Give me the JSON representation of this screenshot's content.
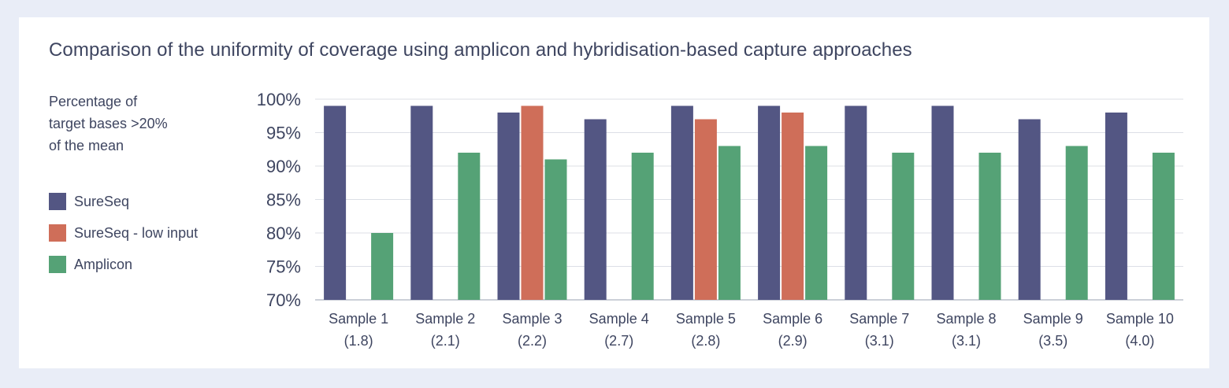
{
  "chart_data": {
    "type": "bar",
    "title": "Comparison of the uniformity of coverage using amplicon and hybridisation-based capture approaches",
    "ylabel_lines": [
      "Percentage of",
      "target bases >20%",
      "of the mean"
    ],
    "categories": [
      "Sample 1",
      "Sample 2",
      "Sample 3",
      "Sample 4",
      "Sample 5",
      "Sample 6",
      "Sample 7",
      "Sample 8",
      "Sample 9",
      "Sample 10"
    ],
    "category_sublabels": [
      "(1.8)",
      "(2.1)",
      "(2.2)",
      "(2.7)",
      "(2.8)",
      "(2.9)",
      "(3.1)",
      "(3.1)",
      "(3.5)",
      "(4.0)"
    ],
    "ylim": [
      70,
      100
    ],
    "yticks": [
      100,
      95,
      90,
      85,
      80,
      75,
      70
    ],
    "ytick_labels": [
      "100%",
      "95%",
      "90%",
      "85%",
      "80%",
      "75%",
      "70%"
    ],
    "grid": true,
    "legend_position": "left",
    "series": [
      {
        "name": "SureSeq",
        "color": "#535683",
        "values": [
          99,
          99,
          98,
          97,
          99,
          99,
          99,
          99,
          97,
          98
        ]
      },
      {
        "name": "SureSeq - low input",
        "color": "#cf6e59",
        "values": [
          null,
          null,
          99,
          null,
          97,
          98,
          null,
          null,
          null,
          null
        ]
      },
      {
        "name": "Amplicon",
        "color": "#55a276",
        "values": [
          80,
          92,
          91,
          92,
          93,
          93,
          92,
          92,
          93,
          92
        ]
      }
    ]
  }
}
